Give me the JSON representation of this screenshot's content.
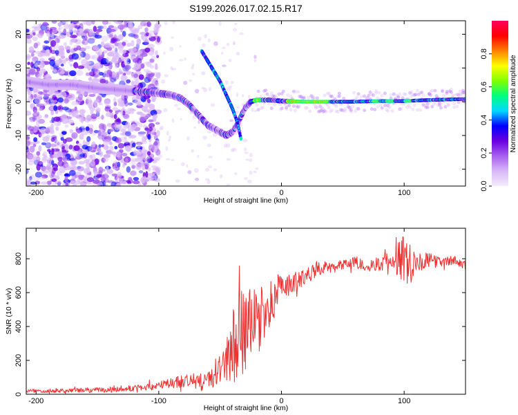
{
  "title": "S199.2026.017.02.15.R17",
  "chart_data": [
    {
      "type": "heatmap",
      "name": "spectrogram",
      "xlabel": "Height of straight line (km)",
      "ylabel": "Frequency (Hz)",
      "xlim": [
        -208,
        150
      ],
      "ylim": [
        -25,
        24
      ],
      "xticks": [
        -200,
        -100,
        0,
        100
      ],
      "xtick_labels": [
        "-200",
        "-100",
        "0",
        "100"
      ],
      "yticks": [
        -20,
        -10,
        0,
        10,
        20
      ],
      "ytick_labels": [
        "-20",
        "-10",
        "0",
        "10",
        "20"
      ],
      "main_track": [
        [
          -208,
          6
        ],
        [
          -190,
          5
        ],
        [
          -170,
          5
        ],
        [
          -150,
          4
        ],
        [
          -130,
          3.5
        ],
        [
          -115,
          3
        ],
        [
          -100,
          2.5
        ],
        [
          -90,
          2
        ],
        [
          -82,
          1
        ],
        [
          -75,
          -1
        ],
        [
          -70,
          -3
        ],
        [
          -65,
          -5
        ],
        [
          -60,
          -7
        ],
        [
          -55,
          -8
        ],
        [
          -50,
          -9
        ],
        [
          -45,
          -10
        ],
        [
          -40,
          -9
        ],
        [
          -35,
          -6
        ],
        [
          -30,
          -2
        ],
        [
          -25,
          0
        ],
        [
          -20,
          0.5
        ],
        [
          -10,
          0.5
        ],
        [
          0,
          0.2
        ],
        [
          20,
          0
        ],
        [
          40,
          0
        ],
        [
          60,
          0
        ],
        [
          80,
          0.2
        ],
        [
          100,
          0.2
        ],
        [
          120,
          0.5
        ],
        [
          150,
          0.8
        ]
      ],
      "secondary_track": [
        [
          -65,
          15
        ],
        [
          -60,
          12
        ],
        [
          -55,
          9
        ],
        [
          -50,
          6
        ],
        [
          -45,
          2
        ],
        [
          -40,
          -2
        ],
        [
          -36,
          -6
        ],
        [
          -33,
          -11
        ]
      ],
      "colorbar": {
        "label": "Normalized spectral amplitude",
        "range": [
          0,
          1
        ],
        "ticks": [
          0.0,
          0.2,
          0.4,
          0.6,
          0.8
        ],
        "tick_labels": [
          "0.0",
          "0.2",
          "0.4",
          "0.6",
          "0.8"
        ],
        "colors": [
          "#f4ecfc",
          "#d9b8f7",
          "#a860f0",
          "#6a00e0",
          "#0000ff",
          "#00d8ff",
          "#00ff80",
          "#80ff00",
          "#ffff00",
          "#ff8000",
          "#ff0000",
          "#ff0060"
        ]
      }
    },
    {
      "type": "line",
      "name": "snr",
      "xlabel": "Height of straight line (km)",
      "ylabel": "SNR (10 * v/v)",
      "xlim": [
        -208,
        150
      ],
      "ylim": [
        0,
        980
      ],
      "xticks": [
        -200,
        -100,
        0,
        100
      ],
      "xtick_labels": [
        "-200",
        "-100",
        "0",
        "100"
      ],
      "yticks": [
        0,
        200,
        400,
        600,
        800
      ],
      "ytick_labels": [
        "0",
        "200",
        "400",
        "600",
        "800"
      ],
      "line_color": "#ee3030",
      "series": [
        {
          "name": "SNR",
          "x": [
            -208,
            -180,
            -150,
            -130,
            -115,
            -100,
            -80,
            -65,
            -55,
            -45,
            -40,
            -35,
            -30,
            -25,
            -20,
            -15,
            -10,
            -5,
            0,
            5,
            10,
            15,
            20,
            25,
            30,
            40,
            50,
            60,
            70,
            80,
            90,
            95,
            100,
            105,
            110,
            120,
            130,
            140,
            150
          ],
          "y": [
            20,
            22,
            25,
            30,
            40,
            50,
            80,
            70,
            100,
            200,
            280,
            330,
            380,
            400,
            420,
            470,
            520,
            580,
            620,
            640,
            660,
            680,
            700,
            720,
            740,
            760,
            770,
            780,
            760,
            770,
            790,
            800,
            800,
            790,
            780,
            790,
            780,
            790,
            760
          ]
        }
      ],
      "noise_envelope": {
        "x": [
          -208,
          -150,
          -120,
          -100,
          -70,
          -55,
          -45,
          -40,
          -35,
          -30,
          -20,
          -10,
          0,
          10,
          20,
          40,
          80,
          90,
          95,
          100,
          105,
          110,
          130,
          150
        ],
        "amp": [
          12,
          15,
          18,
          25,
          50,
          60,
          120,
          220,
          300,
          260,
          200,
          150,
          80,
          60,
          50,
          30,
          40,
          60,
          120,
          160,
          140,
          60,
          30,
          25
        ]
      }
    }
  ]
}
